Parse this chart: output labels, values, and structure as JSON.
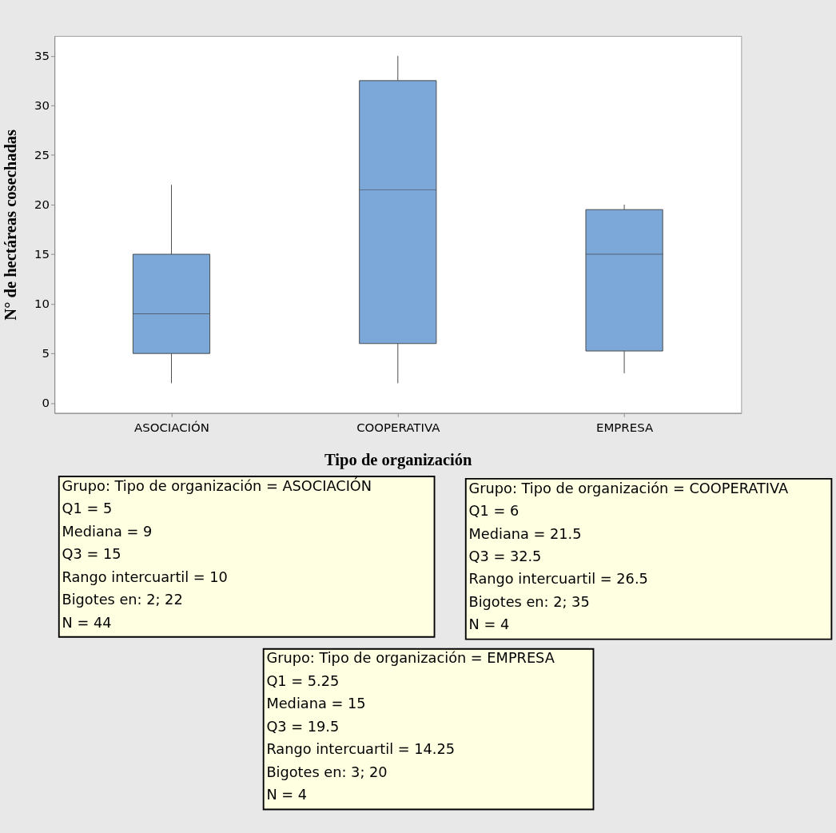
{
  "chart_data": {
    "type": "box",
    "xlabel": "Tipo de organización",
    "ylabel": "N° de hectáreas cosechadas",
    "categories": [
      "ASOCIACIÓN",
      "COOPERATIVA",
      "EMPRESA"
    ],
    "boxes": [
      {
        "low": 2,
        "q1": 5,
        "median": 9,
        "q3": 15,
        "high": 22
      },
      {
        "low": 2,
        "q1": 6,
        "median": 21.5,
        "q3": 32.5,
        "high": 35
      },
      {
        "low": 3,
        "q1": 5.25,
        "median": 15,
        "q3": 19.5,
        "high": 20
      }
    ],
    "color": "#7ba7d9",
    "ylim": [
      -1,
      37
    ],
    "yticks": [
      0,
      5,
      10,
      15,
      20,
      25,
      30,
      35
    ],
    "grid": false,
    "legend": false,
    "annotations": [
      "Grupo: Tipo de organización = ASOCIACIÓN\nQ1 = 5\nMediana = 9\nQ3 = 15\nRango intercuartil = 10\nBigotes en: 2; 22\nN = 44",
      "Grupo: Tipo de organización = COOPERATIVA\nQ1 = 6\nMediana = 21.5\nQ3 = 32.5\nRango intercuartil = 26.5\nBigotes en: 2; 35\nN = 4",
      "Grupo: Tipo de organización = EMPRESA\nQ1 = 5.25\nMediana = 15\nQ3 = 19.5\nRango intercuartil = 14.25\nBigotes en: 3; 20\nN = 4"
    ]
  }
}
